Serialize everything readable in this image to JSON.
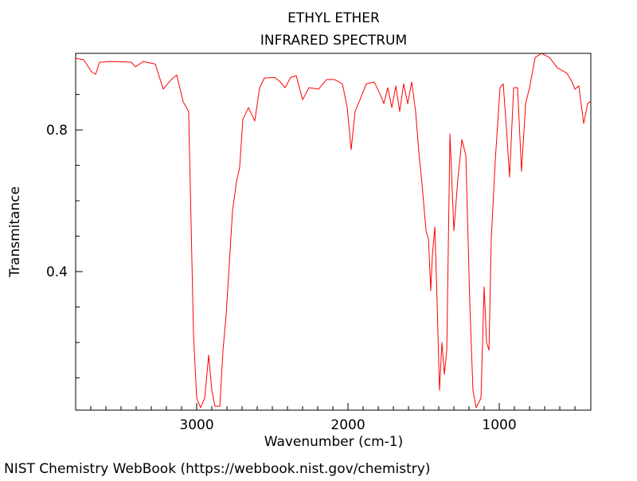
{
  "chart_data": {
    "type": "line",
    "title": "ETHYL ETHER",
    "subtitle": "INFRARED SPECTRUM",
    "x_label": "Wavenumber (cm-1)",
    "y_label": "Transmitance",
    "source": "NIST Chemistry WebBook (https://webbook.nist.gov/chemistry)",
    "xlim": [
      3800,
      395
    ],
    "ylim": [
      0.009,
      1.016
    ],
    "xticks": [
      3000,
      2000,
      1000
    ],
    "yticks": [
      0.4,
      0.8
    ],
    "x_minor_ticks": [
      3700,
      3600,
      3500,
      3400,
      3300,
      3200,
      3100,
      2900,
      2800,
      2700,
      2600,
      2500,
      2400,
      2300,
      2200,
      2100,
      1900,
      1800,
      1700,
      1600,
      1500,
      1400,
      1300,
      1200,
      1100,
      900,
      800,
      700,
      600,
      500
    ],
    "y_minor_ticks": [
      0.1,
      0.2,
      0.3,
      0.5,
      0.6,
      0.7,
      0.9
    ],
    "series": [
      {
        "color": "#ff0000",
        "x": [
          3800,
          3747,
          3695,
          3668,
          3642,
          3563,
          3432,
          3405,
          3353,
          3274,
          3221,
          3168,
          3132,
          3089,
          3053,
          3037,
          3021,
          3000,
          2974,
          2947,
          2921,
          2900,
          2879,
          2847,
          2826,
          2805,
          2784,
          2763,
          2737,
          2716,
          2695,
          2658,
          2616,
          2584,
          2553,
          2484,
          2447,
          2416,
          2379,
          2342,
          2300,
          2258,
          2195,
          2142,
          2089,
          2037,
          2005,
          1979,
          1953,
          1921,
          1879,
          1826,
          1784,
          1763,
          1737,
          1710,
          1684,
          1658,
          1632,
          1605,
          1579,
          1553,
          1532,
          1511,
          1484,
          1468,
          1453,
          1442,
          1426,
          1411,
          1395,
          1379,
          1363,
          1347,
          1326,
          1300,
          1274,
          1247,
          1221,
          1195,
          1174,
          1153,
          1121,
          1100,
          1084,
          1068,
          1053,
          1026,
          995,
          974,
          953,
          932,
          905,
          879,
          853,
          826,
          800,
          763,
          721,
          668,
          616,
          553,
          521,
          500,
          474,
          442,
          416,
          395
        ],
        "values": [
          1.002,
          0.998,
          0.964,
          0.957,
          0.991,
          0.993,
          0.991,
          0.978,
          0.993,
          0.986,
          0.915,
          0.942,
          0.955,
          0.879,
          0.852,
          0.537,
          0.222,
          0.043,
          0.016,
          0.043,
          0.164,
          0.065,
          0.02,
          0.02,
          0.178,
          0.279,
          0.425,
          0.571,
          0.654,
          0.694,
          0.829,
          0.863,
          0.825,
          0.919,
          0.946,
          0.948,
          0.935,
          0.919,
          0.948,
          0.953,
          0.885,
          0.919,
          0.915,
          0.942,
          0.942,
          0.93,
          0.863,
          0.744,
          0.852,
          0.885,
          0.93,
          0.935,
          0.897,
          0.874,
          0.919,
          0.863,
          0.924,
          0.852,
          0.93,
          0.874,
          0.935,
          0.852,
          0.739,
          0.649,
          0.515,
          0.492,
          0.346,
          0.447,
          0.526,
          0.312,
          0.065,
          0.2,
          0.11,
          0.178,
          0.789,
          0.515,
          0.661,
          0.773,
          0.728,
          0.312,
          0.065,
          0.016,
          0.043,
          0.357,
          0.2,
          0.178,
          0.492,
          0.717,
          0.919,
          0.93,
          0.807,
          0.667,
          0.919,
          0.919,
          0.683,
          0.874,
          0.919,
          1.004,
          1.016,
          1.004,
          0.975,
          0.96,
          0.937,
          0.915,
          0.924,
          0.818,
          0.874,
          0.881
        ]
      }
    ]
  }
}
